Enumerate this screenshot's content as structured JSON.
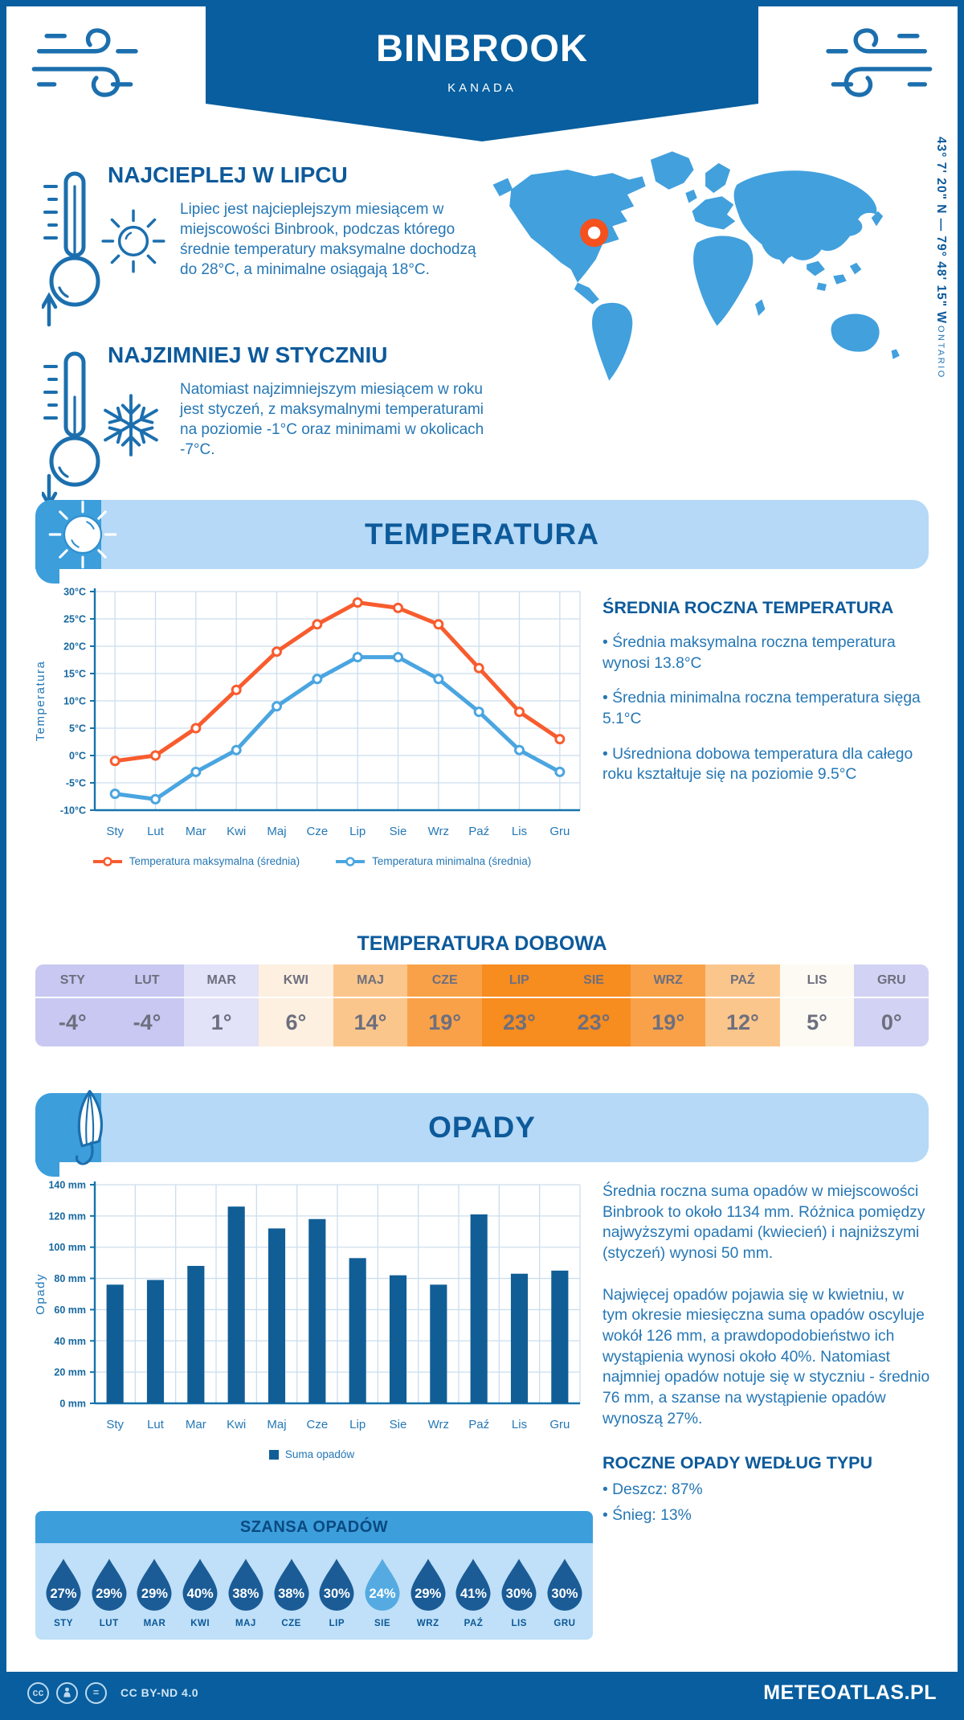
{
  "header": {
    "title": "BINBROOK",
    "subtitle": "KANADA"
  },
  "highlights": [
    {
      "title": "NAJCIEPLEJ W LIPCU",
      "text": "Lipiec jest najcieplejszym miesiącem w miejscowości Binbrook, podczas którego średnie temperatury maksymalne dochodzą do 28°C, a minimalne osiągają 18°C."
    },
    {
      "title": "NAJZIMNIEJ W STYCZNIU",
      "text": "Natomiast najzimniejszym miesiącem w roku jest styczeń, z maksymalnymi temperaturami na poziomie -1°C oraz minimami w okolicach -7°C."
    }
  ],
  "map": {
    "coordinates": "43° 7' 20\" N — 79° 48' 15\" W",
    "region": "ONTARIO",
    "map_color": "#42a0dd",
    "marker_color": "#f4511e"
  },
  "temperature_section": {
    "banner": "TEMPERATURA",
    "annual_heading": "ŚREDNIA ROCZNA TEMPERATURA",
    "annual_bullets": [
      "• Średnia maksymalna roczna temperatura wynosi 13.8°C",
      "• Średnia minimalna roczna temperatura sięga 5.1°C",
      "• Uśredniona dobowa temperatura dla całego roku kształtuje się na poziomie 9.5°C"
    ],
    "daily_title": "TEMPERATURA DOBOWA"
  },
  "daily_table": {
    "months": [
      "STY",
      "LUT",
      "MAR",
      "KWI",
      "MAJ",
      "CZE",
      "LIP",
      "SIE",
      "WRZ",
      "PAŹ",
      "LIS",
      "GRU"
    ],
    "values": [
      "-4°",
      "-4°",
      "1°",
      "6°",
      "14°",
      "19°",
      "23°",
      "23°",
      "19°",
      "12°",
      "5°",
      "0°"
    ],
    "colors": [
      "#c8c8f2",
      "#c8c8f2",
      "#e2e2f8",
      "#fdf0e1",
      "#fbc68c",
      "#f9a149",
      "#f78c1f",
      "#f78c1f",
      "#f9a149",
      "#fbc68c",
      "#fdfaf3",
      "#d2d2f4"
    ]
  },
  "precipitation_section": {
    "banner": "OPADY",
    "paragraphs": [
      "Średnia roczna suma opadów w miejscowości Binbrook to około 1134 mm. Różnica pomiędzy najwyższymi opadami (kwiecień) i najniższymi (styczeń) wynosi 50 mm.",
      "Najwięcej opadów pojawia się w kwietniu, w tym okresie miesięczna suma opadów oscyluje wokół 126 mm, a prawdopodobieństwo ich wystąpienia wynosi około 40%. Natomiast najmniej opadów notuje się w styczniu - średnio 76 mm, a szanse na wystąpienie opadów wynoszą 27%."
    ],
    "type_heading": "ROCZNE OPADY WEDŁUG TYPU",
    "type_bullets": [
      "• Deszcz: 87%",
      "• Śnieg: 13%"
    ]
  },
  "rain_chance": {
    "title": "SZANSA OPADÓW",
    "months": [
      "STY",
      "LUT",
      "MAR",
      "KWI",
      "MAJ",
      "CZE",
      "LIP",
      "SIE",
      "WRZ",
      "PAŹ",
      "LIS",
      "GRU"
    ],
    "values": [
      "27%",
      "29%",
      "29%",
      "40%",
      "38%",
      "38%",
      "30%",
      "24%",
      "29%",
      "41%",
      "30%",
      "30%"
    ],
    "drop_color": "#1b5c97",
    "highlight_color": "#55abe1",
    "highlight_index": 7
  },
  "footer": {
    "license": "CC BY-ND 4.0",
    "site": "METEOATLAS.PL",
    "cc_label": "cc",
    "nd_label": "="
  },
  "chart_data": [
    {
      "type": "line",
      "categories": [
        "Sty",
        "Lut",
        "Mar",
        "Kwi",
        "Maj",
        "Cze",
        "Lip",
        "Sie",
        "Wrz",
        "Paź",
        "Lis",
        "Gru"
      ],
      "series": [
        {
          "name": "Temperatura maksymalna (średnia)",
          "color": "#f85c2e",
          "values": [
            -1,
            0,
            5,
            12,
            19,
            24,
            28,
            27,
            24,
            16,
            8,
            3
          ]
        },
        {
          "name": "Temperatura minimalna (średnia)",
          "color": "#4aa5e0",
          "values": [
            -7,
            -8,
            -3,
            1,
            9,
            14,
            18,
            18,
            14,
            8,
            1,
            -3
          ]
        }
      ],
      "ylabel": "Temperatura",
      "ylim": [
        -10,
        30
      ],
      "ytick_step": 5,
      "yunit": "°C",
      "grid": true,
      "legend_position": "bottom"
    },
    {
      "type": "bar",
      "categories": [
        "Sty",
        "Lut",
        "Mar",
        "Kwi",
        "Maj",
        "Cze",
        "Lip",
        "Sie",
        "Wrz",
        "Paź",
        "Lis",
        "Gru"
      ],
      "series": [
        {
          "name": "Suma opadów",
          "color": "#115e96",
          "values": [
            76,
            79,
            88,
            126,
            112,
            118,
            93,
            82,
            76,
            121,
            83,
            85
          ]
        }
      ],
      "ylabel": "Opady",
      "ylim": [
        0,
        140
      ],
      "ytick_step": 20,
      "yunit": " mm",
      "grid": true,
      "legend_position": "bottom"
    }
  ]
}
